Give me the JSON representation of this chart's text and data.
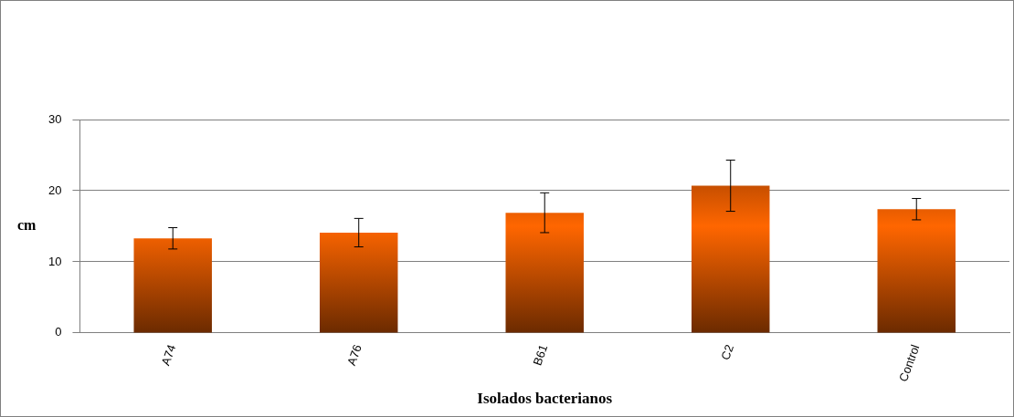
{
  "chart_data": {
    "type": "bar",
    "xlabel": "Isolados bacterianos",
    "ylabel": "cm",
    "categories": [
      "A74",
      "A76",
      "B61",
      "C2",
      "Control"
    ],
    "values": [
      13.3,
      14.1,
      16.9,
      20.7,
      17.4
    ],
    "errors": [
      1.5,
      2.0,
      2.8,
      3.6,
      1.5
    ],
    "color": "#ff6600",
    "ylim": [
      0,
      30
    ],
    "yticks": [
      0,
      10,
      20,
      30
    ],
    "grid": "y",
    "legend": false
  }
}
